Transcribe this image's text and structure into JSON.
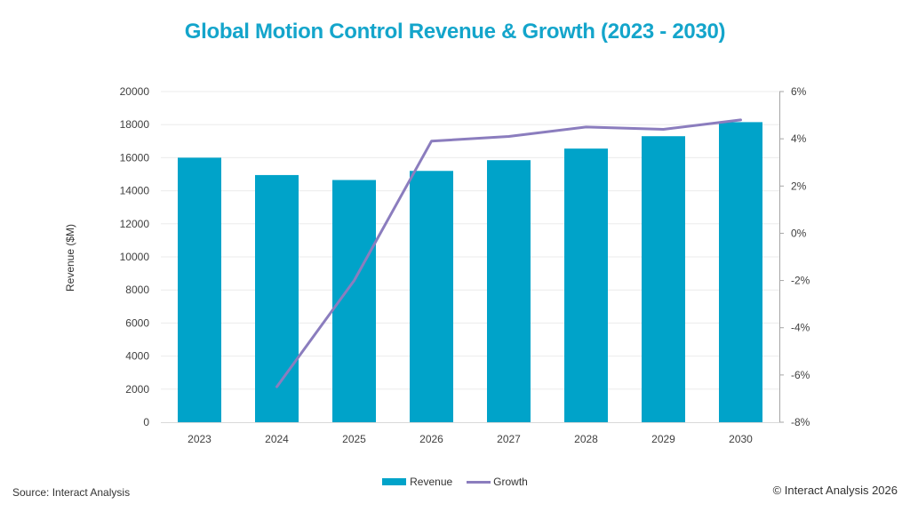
{
  "chart_data": {
    "type": "bar",
    "title": "Global Motion Control Revenue & Growth (2023 - 2030)",
    "xlabel": "",
    "ylabel": "Revenue ($M)",
    "ylabel_right": "",
    "categories": [
      "2023",
      "2024",
      "2025",
      "2026",
      "2027",
      "2028",
      "2029",
      "2030"
    ],
    "series": [
      {
        "name": "Revenue",
        "type": "bar",
        "axis": "left",
        "color": "#00A3C9",
        "values": [
          16000,
          14950,
          14650,
          15200,
          15850,
          16550,
          17300,
          18150
        ]
      },
      {
        "name": "Growth",
        "type": "line",
        "axis": "right",
        "unit": "%",
        "color": "#8B7DBE",
        "values": [
          null,
          -6.5,
          -2.0,
          3.9,
          4.1,
          4.5,
          4.4,
          4.8
        ]
      }
    ],
    "ylim": [
      0,
      20000
    ],
    "yticks": [
      0,
      2000,
      4000,
      6000,
      8000,
      10000,
      12000,
      14000,
      16000,
      18000,
      20000
    ],
    "ylim_right": [
      -8,
      6
    ],
    "yticks_right": [
      "-8%",
      "-6%",
      "-4%",
      "-2%",
      "0%",
      "2%",
      "4%",
      "6%"
    ],
    "yticks_right_values": [
      -8,
      -6,
      -4,
      -2,
      0,
      2,
      4,
      6
    ],
    "grid": true,
    "legend": {
      "position": "bottom-center",
      "entries": [
        "Revenue",
        "Growth"
      ]
    }
  },
  "footer": {
    "source": "Source: Interact Analysis",
    "copyright": "© Interact Analysis 2026"
  },
  "colors": {
    "title": "#14A5CB",
    "bar": "#00A3C9",
    "line": "#8B7DBE",
    "grid": "#EBEBEB",
    "axis": "#A6A6A6"
  }
}
